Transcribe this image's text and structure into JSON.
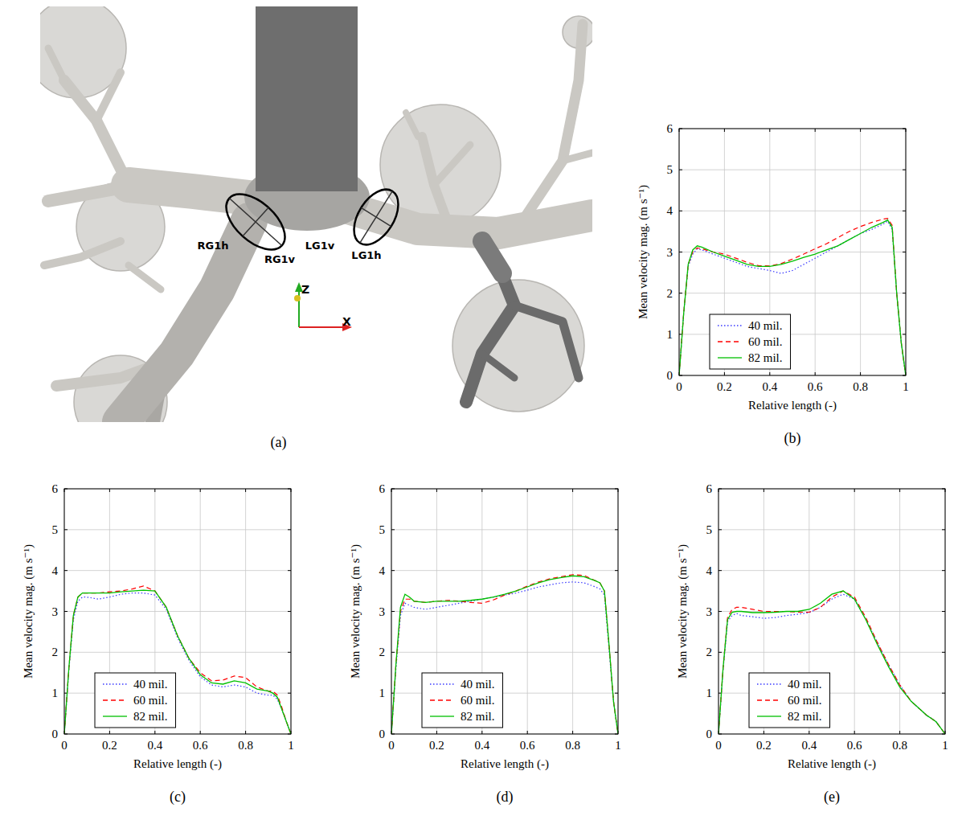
{
  "figure": {
    "caption": "(a)",
    "annotations": [
      "RG1h",
      "RG1v",
      "LG1v",
      "LG1h"
    ],
    "axes": [
      "Z",
      "X"
    ]
  },
  "chart_data": [
    {
      "type": "line",
      "title": "(b)",
      "x_label": "Relative length (-)",
      "y_label": "Mean velocity mag. (m s⁻¹)",
      "x": [
        0,
        0.02,
        0.04,
        0.06,
        0.08,
        0.1,
        0.15,
        0.2,
        0.25,
        0.3,
        0.35,
        0.4,
        0.45,
        0.5,
        0.55,
        0.6,
        0.65,
        0.7,
        0.75,
        0.8,
        0.85,
        0.9,
        0.92,
        0.94,
        0.96,
        0.98,
        1
      ],
      "series": [
        {
          "name": "40 mil.",
          "color": "#3a3aff",
          "line_style": "dotted",
          "values": [
            0,
            1.5,
            2.65,
            2.95,
            3.08,
            3.05,
            2.95,
            2.85,
            2.75,
            2.65,
            2.6,
            2.55,
            2.48,
            2.55,
            2.7,
            2.85,
            3.0,
            3.15,
            3.3,
            3.45,
            3.55,
            3.68,
            3.75,
            3.55,
            2.0,
            0.8,
            0
          ]
        },
        {
          "name": "60 mil.",
          "color": "#ff0000",
          "line_style": "dashed",
          "values": [
            0,
            1.5,
            2.7,
            3.0,
            3.1,
            3.08,
            3.0,
            2.95,
            2.85,
            2.75,
            2.67,
            2.66,
            2.72,
            2.83,
            2.95,
            3.08,
            3.2,
            3.35,
            3.5,
            3.62,
            3.72,
            3.8,
            3.82,
            3.65,
            2.0,
            0.8,
            0
          ]
        },
        {
          "name": "82 mil.",
          "color": "#00c000",
          "line_style": "solid",
          "values": [
            0,
            1.5,
            2.7,
            3.05,
            3.15,
            3.12,
            3.0,
            2.9,
            2.8,
            2.7,
            2.65,
            2.65,
            2.7,
            2.78,
            2.87,
            2.95,
            3.05,
            3.15,
            3.3,
            3.45,
            3.6,
            3.72,
            3.78,
            3.6,
            2.0,
            0.8,
            0
          ]
        }
      ],
      "xlim": [
        0,
        1
      ],
      "xticks": [
        0,
        0.2,
        0.4,
        0.6,
        0.8,
        1
      ],
      "ylim": [
        0,
        6
      ],
      "yticks": [
        0,
        1,
        2,
        3,
        4,
        5,
        6
      ],
      "grid": true,
      "legend": "lower left"
    },
    {
      "type": "line",
      "title": "(c)",
      "x_label": "Relative length (-)",
      "y_label": "Mean velocity mag. (m s⁻¹)",
      "x": [
        0,
        0.02,
        0.04,
        0.06,
        0.08,
        0.1,
        0.15,
        0.2,
        0.25,
        0.3,
        0.35,
        0.4,
        0.45,
        0.5,
        0.55,
        0.6,
        0.65,
        0.7,
        0.75,
        0.8,
        0.85,
        0.9,
        0.92,
        0.94,
        0.96,
        0.98,
        1
      ],
      "series": [
        {
          "name": "40 mil.",
          "color": "#3a3aff",
          "line_style": "dotted",
          "values": [
            0,
            1.55,
            2.8,
            3.25,
            3.35,
            3.35,
            3.3,
            3.35,
            3.42,
            3.45,
            3.45,
            3.4,
            3.05,
            2.35,
            1.8,
            1.4,
            1.2,
            1.15,
            1.2,
            1.15,
            1.0,
            0.95,
            0.95,
            0.85,
            0.6,
            0.3,
            0
          ]
        },
        {
          "name": "60 mil.",
          "color": "#ff0000",
          "line_style": "dashed",
          "values": [
            0,
            1.6,
            2.9,
            3.35,
            3.45,
            3.45,
            3.45,
            3.48,
            3.5,
            3.55,
            3.62,
            3.5,
            3.1,
            2.4,
            1.85,
            1.5,
            1.3,
            1.32,
            1.42,
            1.38,
            1.15,
            1.05,
            1.05,
            0.95,
            0.65,
            0.3,
            0
          ]
        },
        {
          "name": "82 mil.",
          "color": "#00c000",
          "line_style": "solid",
          "values": [
            0,
            1.6,
            2.9,
            3.35,
            3.45,
            3.45,
            3.45,
            3.45,
            3.48,
            3.5,
            3.52,
            3.5,
            3.1,
            2.4,
            1.85,
            1.45,
            1.25,
            1.22,
            1.3,
            1.25,
            1.1,
            1.05,
            1.0,
            0.9,
            0.6,
            0.3,
            0
          ]
        }
      ],
      "xlim": [
        0,
        1
      ],
      "xticks": [
        0,
        0.2,
        0.4,
        0.6,
        0.8,
        1
      ],
      "ylim": [
        0,
        6
      ],
      "yticks": [
        0,
        1,
        2,
        3,
        4,
        5,
        6
      ],
      "grid": true,
      "legend": "lower left"
    },
    {
      "type": "line",
      "title": "(d)",
      "x_label": "Relative length (-)",
      "y_label": "Mean velocity mag. (m s⁻¹)",
      "x": [
        0,
        0.02,
        0.04,
        0.06,
        0.08,
        0.1,
        0.15,
        0.2,
        0.25,
        0.3,
        0.35,
        0.4,
        0.45,
        0.5,
        0.55,
        0.6,
        0.65,
        0.7,
        0.75,
        0.8,
        0.85,
        0.9,
        0.92,
        0.94,
        0.96,
        0.98,
        1
      ],
      "series": [
        {
          "name": "40 mil.",
          "color": "#3a3aff",
          "line_style": "dotted",
          "values": [
            0,
            1.6,
            2.9,
            3.2,
            3.15,
            3.1,
            3.05,
            3.1,
            3.15,
            3.2,
            3.25,
            3.3,
            3.35,
            3.4,
            3.45,
            3.52,
            3.6,
            3.65,
            3.7,
            3.72,
            3.7,
            3.6,
            3.55,
            3.4,
            2.1,
            0.8,
            0
          ]
        },
        {
          "name": "60 mil.",
          "color": "#ff0000",
          "line_style": "dashed",
          "values": [
            0,
            1.7,
            3.0,
            3.3,
            3.3,
            3.25,
            3.22,
            3.25,
            3.27,
            3.25,
            3.22,
            3.2,
            3.28,
            3.4,
            3.5,
            3.62,
            3.72,
            3.8,
            3.85,
            3.9,
            3.88,
            3.75,
            3.7,
            3.5,
            2.2,
            0.8,
            0
          ]
        },
        {
          "name": "82 mil.",
          "color": "#00c000",
          "line_style": "solid",
          "values": [
            0,
            1.7,
            3.1,
            3.42,
            3.35,
            3.25,
            3.22,
            3.25,
            3.25,
            3.25,
            3.27,
            3.3,
            3.35,
            3.42,
            3.5,
            3.6,
            3.7,
            3.78,
            3.83,
            3.87,
            3.85,
            3.75,
            3.7,
            3.5,
            2.2,
            0.8,
            0
          ]
        }
      ],
      "xlim": [
        0,
        1
      ],
      "xticks": [
        0,
        0.2,
        0.4,
        0.6,
        0.8,
        1
      ],
      "ylim": [
        0,
        6
      ],
      "yticks": [
        0,
        1,
        2,
        3,
        4,
        5,
        6
      ],
      "grid": true,
      "legend": "lower left"
    },
    {
      "type": "line",
      "title": "(e)",
      "x_label": "Relative length (-)",
      "y_label": "Mean velocity mag. (m s⁻¹)",
      "x": [
        0,
        0.02,
        0.04,
        0.06,
        0.08,
        0.1,
        0.15,
        0.2,
        0.25,
        0.3,
        0.35,
        0.4,
        0.45,
        0.5,
        0.55,
        0.6,
        0.65,
        0.7,
        0.75,
        0.8,
        0.85,
        0.9,
        0.92,
        0.94,
        0.96,
        0.98,
        1
      ],
      "series": [
        {
          "name": "40 mil.",
          "color": "#3a3aff",
          "line_style": "dotted",
          "values": [
            0,
            1.55,
            2.75,
            2.9,
            2.95,
            2.9,
            2.87,
            2.83,
            2.85,
            2.9,
            2.93,
            2.97,
            3.1,
            3.3,
            3.42,
            3.3,
            2.8,
            2.25,
            1.7,
            1.2,
            0.8,
            0.55,
            0.45,
            0.38,
            0.3,
            0.15,
            0
          ]
        },
        {
          "name": "60 mil.",
          "color": "#ff0000",
          "line_style": "dashed",
          "values": [
            0,
            1.6,
            2.85,
            3.05,
            3.1,
            3.1,
            3.05,
            3.0,
            3.0,
            3.0,
            2.98,
            2.98,
            3.1,
            3.35,
            3.5,
            3.35,
            2.85,
            2.25,
            1.7,
            1.2,
            0.8,
            0.55,
            0.45,
            0.38,
            0.3,
            0.15,
            0
          ]
        },
        {
          "name": "82 mil.",
          "color": "#00c000",
          "line_style": "solid",
          "values": [
            0,
            1.6,
            2.8,
            2.98,
            3.0,
            3.0,
            2.97,
            2.97,
            2.98,
            3.0,
            3.0,
            3.05,
            3.2,
            3.42,
            3.5,
            3.3,
            2.8,
            2.2,
            1.65,
            1.15,
            0.8,
            0.55,
            0.45,
            0.38,
            0.3,
            0.15,
            0
          ]
        }
      ],
      "xlim": [
        0,
        1
      ],
      "xticks": [
        0,
        0.2,
        0.4,
        0.6,
        0.8,
        1
      ],
      "ylim": [
        0,
        6
      ],
      "yticks": [
        0,
        1,
        2,
        3,
        4,
        5,
        6
      ],
      "grid": true,
      "legend": "lower left"
    }
  ]
}
